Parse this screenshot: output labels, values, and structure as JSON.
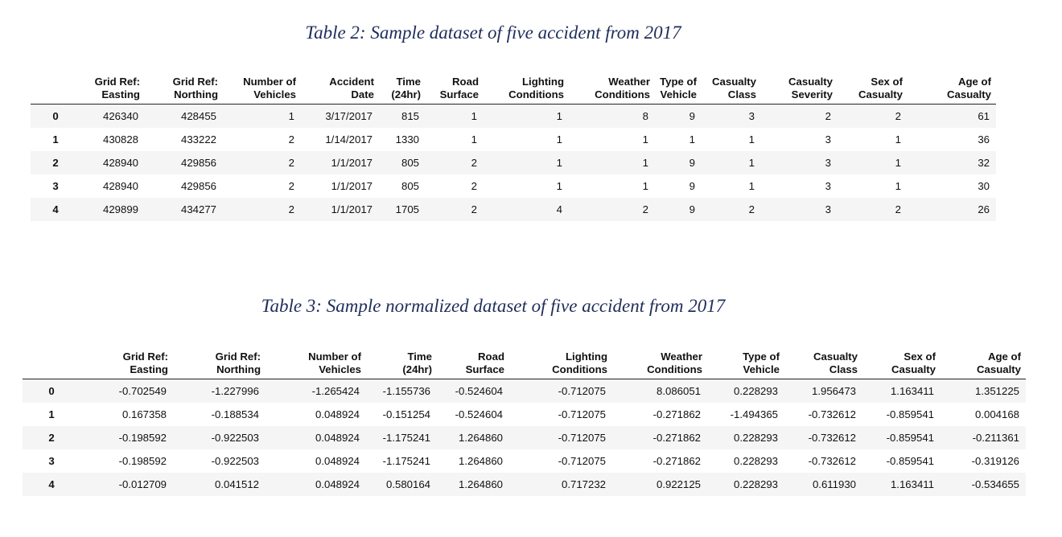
{
  "table2": {
    "caption": "Table 2: Sample dataset of five accident from 2017",
    "columns": [
      [
        "Grid Ref:",
        "Easting"
      ],
      [
        "Grid Ref:",
        "Northing"
      ],
      [
        "Number of",
        "Vehicles"
      ],
      [
        "Accident",
        "Date"
      ],
      [
        "Time",
        "(24hr)"
      ],
      [
        "Road",
        "Surface"
      ],
      [
        "Lighting",
        "Conditions"
      ],
      [
        "Weather",
        "Conditions"
      ],
      [
        "Type of",
        "Vehicle"
      ],
      [
        "Casualty",
        "Class"
      ],
      [
        "Casualty",
        "Severity"
      ],
      [
        "Sex of",
        "Casualty"
      ],
      [
        "Age of",
        "Casualty"
      ]
    ],
    "rows": [
      {
        "index": "0",
        "cells": [
          "426340",
          "428455",
          "1",
          "3/17/2017",
          "815",
          "1",
          "1",
          "8",
          "9",
          "3",
          "2",
          "2",
          "61"
        ]
      },
      {
        "index": "1",
        "cells": [
          "430828",
          "433222",
          "2",
          "1/14/2017",
          "1330",
          "1",
          "1",
          "1",
          "1",
          "1",
          "3",
          "1",
          "36"
        ]
      },
      {
        "index": "2",
        "cells": [
          "428940",
          "429856",
          "2",
          "1/1/2017",
          "805",
          "2",
          "1",
          "1",
          "9",
          "1",
          "3",
          "1",
          "32"
        ]
      },
      {
        "index": "3",
        "cells": [
          "428940",
          "429856",
          "2",
          "1/1/2017",
          "805",
          "2",
          "1",
          "1",
          "9",
          "1",
          "3",
          "1",
          "30"
        ]
      },
      {
        "index": "4",
        "cells": [
          "429899",
          "434277",
          "2",
          "1/1/2017",
          "1705",
          "2",
          "4",
          "2",
          "9",
          "2",
          "3",
          "2",
          "26"
        ]
      }
    ]
  },
  "table3": {
    "caption": "Table 3: Sample normalized dataset of five accident from 2017",
    "columns": [
      [
        "Grid Ref:",
        "Easting"
      ],
      [
        "Grid Ref:",
        "Northing"
      ],
      [
        "Number of",
        "Vehicles"
      ],
      [
        "Time",
        "(24hr)"
      ],
      [
        "Road",
        "Surface"
      ],
      [
        "Lighting",
        "Conditions"
      ],
      [
        "Weather",
        "Conditions"
      ],
      [
        "Type of",
        "Vehicle"
      ],
      [
        "Casualty",
        "Class"
      ],
      [
        "Sex of",
        "Casualty"
      ],
      [
        "Age of",
        "Casualty"
      ]
    ],
    "rows": [
      {
        "index": "0",
        "cells": [
          "-0.702549",
          "-1.227996",
          "-1.265424",
          "-1.155736",
          "-0.524604",
          "-0.712075",
          "8.086051",
          "0.228293",
          "1.956473",
          "1.163411",
          "1.351225"
        ]
      },
      {
        "index": "1",
        "cells": [
          "0.167358",
          "-0.188534",
          "0.048924",
          "-0.151254",
          "-0.524604",
          "-0.712075",
          "-0.271862",
          "-1.494365",
          "-0.732612",
          "-0.859541",
          "0.004168"
        ]
      },
      {
        "index": "2",
        "cells": [
          "-0.198592",
          "-0.922503",
          "0.048924",
          "-1.175241",
          "1.264860",
          "-0.712075",
          "-0.271862",
          "0.228293",
          "-0.732612",
          "-0.859541",
          "-0.211361"
        ]
      },
      {
        "index": "3",
        "cells": [
          "-0.198592",
          "-0.922503",
          "0.048924",
          "-1.175241",
          "1.264860",
          "-0.712075",
          "-0.271862",
          "0.228293",
          "-0.732612",
          "-0.859541",
          "-0.319126"
        ]
      },
      {
        "index": "4",
        "cells": [
          "-0.012709",
          "0.041512",
          "0.048924",
          "0.580164",
          "1.264860",
          "0.717232",
          "0.922125",
          "0.228293",
          "0.611930",
          "1.163411",
          "-0.534655"
        ]
      }
    ]
  }
}
